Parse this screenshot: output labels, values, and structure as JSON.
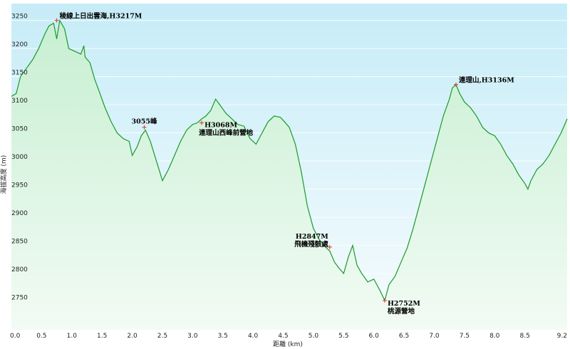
{
  "chart_data": {
    "type": "area",
    "xlabel": "距離 (km)",
    "ylabel": "海拔高度 (m)",
    "xlim": [
      0,
      9.2
    ],
    "ylim": [
      2700,
      3280
    ],
    "x_ticks": [
      0,
      0.5,
      1,
      1.5,
      2,
      2.5,
      3,
      3.5,
      4,
      4.5,
      5,
      5.5,
      6,
      6.5,
      7,
      7.5,
      8,
      8.5,
      9.2
    ],
    "x_tick_labels": [
      "0.0",
      "0.5",
      "1.0",
      "1.5",
      "2.0",
      "2.5",
      "3.0",
      "3.5",
      "4.0",
      "4.5",
      "5.0",
      "5.5",
      "6.0",
      "6.5",
      "7.0",
      "7.5",
      "8.0",
      "8.5",
      "9.2"
    ],
    "y_ticks": [
      2750,
      2800,
      2850,
      2900,
      2950,
      3000,
      3050,
      3100,
      3150,
      3200,
      3250
    ],
    "y_tick_labels": [
      "2750",
      "2800",
      "2850",
      "2900",
      "2950",
      "3000",
      "3050",
      "3100",
      "3150",
      "3200",
      "3250"
    ],
    "grid": true,
    "colors": {
      "line": "#1a9a2a",
      "fill_top": "#c7efd2",
      "fill_bottom": "#f2fbf4",
      "bg_top": "#c6ecf7",
      "bg_bottom": "#f7fcfe",
      "marker": "#e03030"
    },
    "series": [
      {
        "x": [
          0,
          0.08,
          0.15,
          0.25,
          0.35,
          0.45,
          0.55,
          0.62,
          0.7,
          0.75,
          0.8,
          0.88,
          0.95,
          1.05,
          1.15,
          1.2,
          1.22,
          1.3,
          1.38,
          1.45,
          1.55,
          1.65,
          1.75,
          1.85,
          1.95,
          2.0,
          2.08,
          2.15,
          2.22,
          2.3,
          2.4,
          2.5,
          2.55,
          2.6,
          2.7,
          2.8,
          2.9,
          3.0,
          3.08,
          3.15,
          3.22,
          3.3,
          3.38,
          3.45,
          3.55,
          3.65,
          3.75,
          3.85,
          3.95,
          4.05,
          4.15,
          4.25,
          4.35,
          4.45,
          4.52,
          4.6,
          4.7,
          4.8,
          4.9,
          5.0,
          5.1,
          5.2,
          5.27,
          5.35,
          5.42,
          5.5,
          5.58,
          5.65,
          5.72,
          5.8,
          5.9,
          6.0,
          6.1,
          6.18,
          6.25,
          6.35,
          6.45,
          6.55,
          6.65,
          6.75,
          6.85,
          6.95,
          7.05,
          7.15,
          7.25,
          7.3,
          7.36,
          7.42,
          7.5,
          7.6,
          7.7,
          7.8,
          7.9,
          8.0,
          8.1,
          8.2,
          8.3,
          8.4,
          8.5,
          8.55,
          8.6,
          8.7,
          8.8,
          8.9,
          9.0,
          9.1,
          9.2
        ],
        "y": [
          3115,
          3120,
          3150,
          3165,
          3180,
          3200,
          3225,
          3240,
          3245,
          3217,
          3250,
          3235,
          3200,
          3195,
          3190,
          3205,
          3185,
          3175,
          3145,
          3125,
          3095,
          3070,
          3050,
          3040,
          3035,
          3010,
          3025,
          3045,
          3055,
          3035,
          3000,
          2965,
          2975,
          2985,
          3010,
          3035,
          3055,
          3065,
          3068,
          3075,
          3080,
          3090,
          3110,
          3100,
          3085,
          3075,
          3065,
          3062,
          3040,
          3030,
          3050,
          3070,
          3080,
          3078,
          3070,
          3060,
          3030,
          2980,
          2920,
          2880,
          2860,
          2847,
          2840,
          2820,
          2810,
          2800,
          2830,
          2850,
          2815,
          2800,
          2785,
          2790,
          2770,
          2752,
          2780,
          2795,
          2820,
          2845,
          2880,
          2920,
          2960,
          3000,
          3040,
          3080,
          3110,
          3130,
          3136,
          3120,
          3105,
          3095,
          3080,
          3060,
          3050,
          3045,
          3030,
          3010,
          2995,
          2975,
          2960,
          2950,
          2965,
          2985,
          2995,
          3010,
          3030,
          3050,
          3075
        ]
      }
    ],
    "annotations": [
      {
        "x": 0.75,
        "y": 3250,
        "lines": [
          "稜線上日出雲海,H3217M"
        ]
      },
      {
        "x": 2.2,
        "y": 3060,
        "lines": [
          "3055峰"
        ]
      },
      {
        "x": 3.15,
        "y": 3068,
        "lines": [
          "H3068M",
          "連理山西峰前營地"
        ]
      },
      {
        "x": 5.27,
        "y": 2847,
        "lines": [
          "H2847M",
          "飛機殘骸處"
        ]
      },
      {
        "x": 6.18,
        "y": 2752,
        "lines": [
          "H2752M",
          "桃源營地"
        ]
      },
      {
        "x": 7.36,
        "y": 3136,
        "lines": [
          "連理山,H3136M"
        ]
      }
    ]
  }
}
